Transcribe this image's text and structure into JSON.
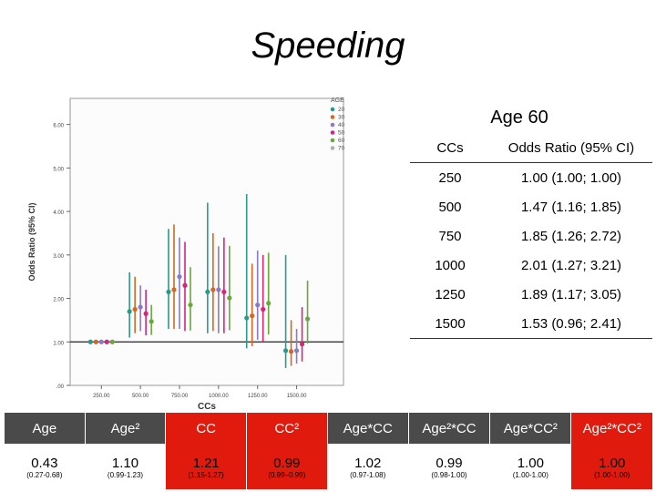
{
  "title": "Speeding",
  "chart_data": {
    "type": "scatter",
    "xlabel": "CCs",
    "ylabel": "Odds Ratio (95% CI)",
    "xlim": [
      50,
      1800
    ],
    "ylim": [
      0,
      6.6
    ],
    "xticks": [
      250,
      500,
      750,
      1000,
      1250,
      1500
    ],
    "xtick_labels": [
      "250.00",
      "500.00",
      "750.00",
      "1000.00",
      "1250.00",
      "1500.00"
    ],
    "yticks": [
      0,
      1,
      2,
      3,
      4,
      5,
      6
    ],
    "ytick_labels": [
      ".00",
      "1.00",
      "2.00",
      "3.00",
      "4.00",
      "5.00",
      "6.00"
    ],
    "reference_line": 1.0,
    "legend_title": "AGE",
    "legend_placement": "top-right",
    "series": [
      {
        "name": "20",
        "color": "#2a9a8a",
        "points": [
          {
            "x": 250,
            "y": 1.0,
            "lo": 1.0,
            "hi": 1.0
          },
          {
            "x": 500,
            "y": 1.7,
            "lo": 1.1,
            "hi": 2.6
          },
          {
            "x": 750,
            "y": 2.15,
            "lo": 1.3,
            "hi": 3.6
          },
          {
            "x": 1000,
            "y": 2.15,
            "lo": 1.2,
            "hi": 4.2
          },
          {
            "x": 1250,
            "y": 1.55,
            "lo": 0.85,
            "hi": 4.4
          },
          {
            "x": 1500,
            "y": 0.8,
            "lo": 0.4,
            "hi": 3.0
          }
        ]
      },
      {
        "name": "30",
        "color": "#d2691e",
        "points": [
          {
            "x": 250,
            "y": 1.0,
            "lo": 1.0,
            "hi": 1.0
          },
          {
            "x": 500,
            "y": 1.75,
            "lo": 1.2,
            "hi": 2.5
          },
          {
            "x": 750,
            "y": 2.2,
            "lo": 1.3,
            "hi": 3.7
          },
          {
            "x": 1000,
            "y": 2.2,
            "lo": 1.25,
            "hi": 3.5
          },
          {
            "x": 1250,
            "y": 1.6,
            "lo": 0.9,
            "hi": 2.8
          },
          {
            "x": 1500,
            "y": 0.78,
            "lo": 0.45,
            "hi": 1.5
          }
        ]
      },
      {
        "name": "40",
        "color": "#8a7ac8",
        "points": [
          {
            "x": 250,
            "y": 1.0,
            "lo": 1.0,
            "hi": 1.0
          },
          {
            "x": 500,
            "y": 1.8,
            "lo": 1.25,
            "hi": 2.3
          },
          {
            "x": 750,
            "y": 2.5,
            "lo": 1.3,
            "hi": 3.4
          },
          {
            "x": 1000,
            "y": 2.2,
            "lo": 1.2,
            "hi": 3.2
          },
          {
            "x": 1250,
            "y": 1.85,
            "lo": 1.05,
            "hi": 3.1
          },
          {
            "x": 1500,
            "y": 0.8,
            "lo": 0.5,
            "hi": 1.3
          }
        ]
      },
      {
        "name": "50",
        "color": "#d6257a",
        "points": [
          {
            "x": 250,
            "y": 1.0,
            "lo": 1.0,
            "hi": 1.0
          },
          {
            "x": 500,
            "y": 1.65,
            "lo": 1.15,
            "hi": 2.2
          },
          {
            "x": 750,
            "y": 2.3,
            "lo": 1.25,
            "hi": 3.3
          },
          {
            "x": 1000,
            "y": 2.15,
            "lo": 1.2,
            "hi": 3.4
          },
          {
            "x": 1250,
            "y": 1.75,
            "lo": 1.0,
            "hi": 3.0
          },
          {
            "x": 1500,
            "y": 0.95,
            "lo": 0.55,
            "hi": 1.8
          }
        ]
      },
      {
        "name": "60",
        "color": "#6aa83a",
        "points": [
          {
            "x": 250,
            "y": 1.0,
            "lo": 1.0,
            "hi": 1.0
          },
          {
            "x": 500,
            "y": 1.47,
            "lo": 1.16,
            "hi": 1.85
          },
          {
            "x": 750,
            "y": 1.85,
            "lo": 1.26,
            "hi": 2.72
          },
          {
            "x": 1000,
            "y": 2.01,
            "lo": 1.27,
            "hi": 3.21
          },
          {
            "x": 1250,
            "y": 1.89,
            "lo": 1.17,
            "hi": 3.05
          },
          {
            "x": 1500,
            "y": 1.53,
            "lo": 0.96,
            "hi": 2.41
          }
        ]
      },
      {
        "name": "70",
        "color": "#b0b0b0",
        "points": []
      }
    ]
  },
  "age60_table": {
    "title": "Age 60",
    "col_headers": [
      "CCs",
      "Odds Ratio (95% CI)"
    ],
    "rows": [
      {
        "cc": "250",
        "or": "1.00 (1.00; 1.00)"
      },
      {
        "cc": "500",
        "or": "1.47 (1.16; 1.85)"
      },
      {
        "cc": "750",
        "or": "1.85 (1.26; 2.72)"
      },
      {
        "cc": "1000",
        "or": "2.01 (1.27; 3.21)"
      },
      {
        "cc": "1250",
        "or": "1.89 (1.17; 3.05)"
      },
      {
        "cc": "1500",
        "or": "1.53 (0.96; 2.41)"
      }
    ]
  },
  "coef_table": {
    "headers": [
      "Age",
      "Age²",
      "CC",
      "CC²",
      "Age*CC",
      "Age²*CC",
      "Age*CC²",
      "Age²*CC²"
    ],
    "values": [
      "0.43",
      "1.10",
      "1.21",
      "0.99",
      "1.02",
      "0.99",
      "1.00",
      "1.00"
    ],
    "cis": [
      "(0.27-0.68)",
      "(0.99-1.23)",
      "(1.15-1.27)",
      "(0.99–0.99)",
      "(0.97-1.08)",
      "(0.98-1.00)",
      "(1.00-1.00)",
      "(1.00-1.00)"
    ],
    "highlight": [
      false,
      false,
      true,
      true,
      false,
      false,
      false,
      true
    ],
    "highlight_color": "#e11a0e"
  }
}
